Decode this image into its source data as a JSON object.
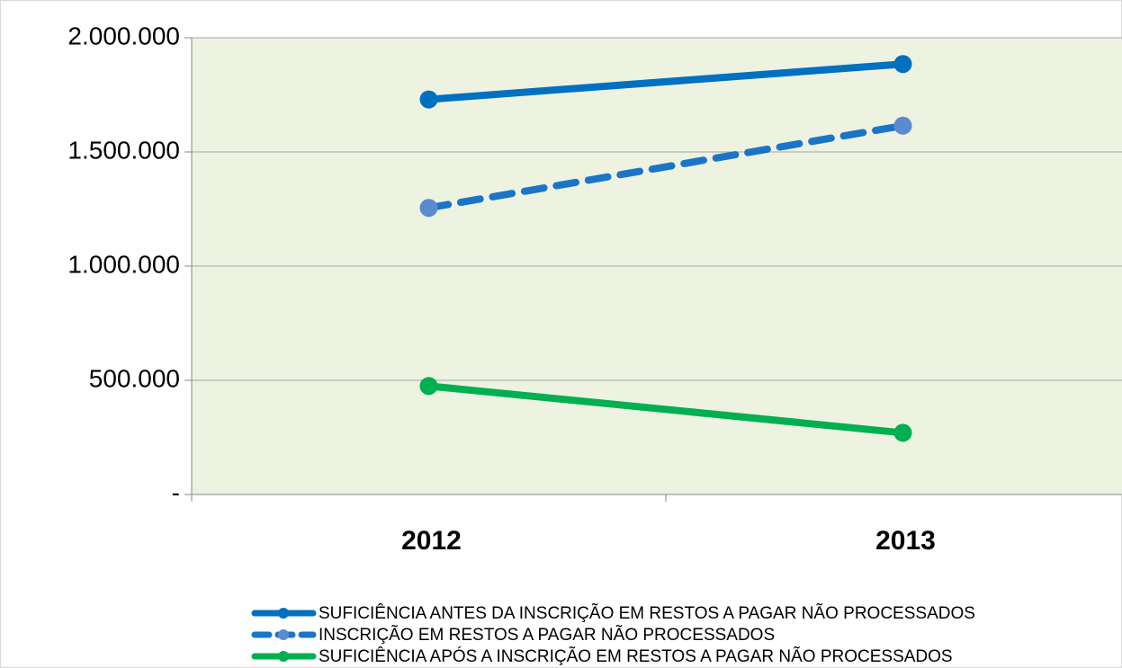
{
  "chart_data": {
    "type": "line",
    "categories": [
      "2012",
      "2013"
    ],
    "series": [
      {
        "name": "SUFICIÊNCIA ANTES DA INSCRIÇÃO EM RESTOS A PAGAR NÃO PROCESSADOS",
        "color": "#0070c0",
        "marker_color": "#0070c0",
        "line_style": "solid",
        "values": [
          1730000,
          1885000
        ]
      },
      {
        "name": "INSCRIÇÃO EM RESTOS A PAGAR NÃO PROCESSADOS",
        "color": "#1a75c6",
        "marker_color": "#5b8bcf",
        "line_style": "dashed",
        "values": [
          1255000,
          1615000
        ]
      },
      {
        "name": "SUFICIÊNCIA APÓS A INSCRIÇÃO EM RESTOS A PAGAR NÃO PROCESSADOS",
        "color": "#00b050",
        "marker_color": "#00b050",
        "line_style": "solid",
        "values": [
          475000,
          270000
        ]
      }
    ],
    "ylim": [
      0,
      2000000
    ],
    "yticks": [
      {
        "value": 0,
        "label": "-"
      },
      {
        "value": 500000,
        "label": "500.000"
      },
      {
        "value": 1000000,
        "label": "1.000.000"
      },
      {
        "value": 1500000,
        "label": "1.500.000"
      },
      {
        "value": 2000000,
        "label": "2.000.000"
      }
    ],
    "grid": true,
    "legend": "bottom"
  }
}
